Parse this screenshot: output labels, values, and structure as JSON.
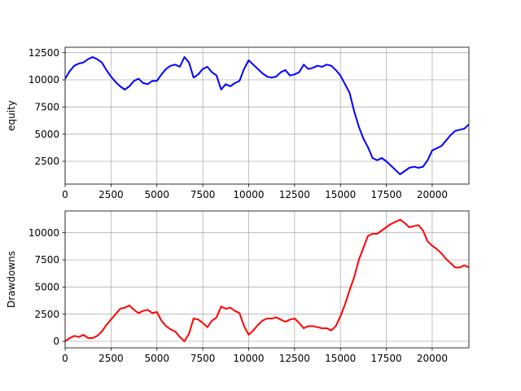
{
  "chart_data": [
    {
      "type": "line",
      "title": "",
      "xlabel": "",
      "ylabel": "equity",
      "xlim": [
        0,
        22000
      ],
      "ylim": [
        400,
        13000
      ],
      "xticks": [
        0,
        2500,
        5000,
        7500,
        10000,
        12500,
        15000,
        17500,
        20000
      ],
      "yticks": [
        2500,
        5000,
        7500,
        10000,
        12500
      ],
      "grid": true,
      "series": [
        {
          "name": "",
          "color": "#0000ff",
          "x": [
            0,
            250,
            500,
            750,
            1000,
            1250,
            1500,
            1750,
            2000,
            2250,
            2500,
            2750,
            3000,
            3250,
            3500,
            3750,
            4000,
            4250,
            4500,
            4750,
            5000,
            5250,
            5500,
            5750,
            6000,
            6250,
            6500,
            6750,
            7000,
            7250,
            7500,
            7750,
            8000,
            8250,
            8500,
            8750,
            9000,
            9250,
            9500,
            9750,
            10000,
            10250,
            10500,
            10750,
            11000,
            11250,
            11500,
            11750,
            12000,
            12250,
            12500,
            12750,
            13000,
            13250,
            13500,
            13750,
            14000,
            14250,
            14500,
            14750,
            15000,
            15250,
            15500,
            15750,
            16000,
            16250,
            16500,
            16750,
            17000,
            17250,
            17500,
            17750,
            18000,
            18250,
            18500,
            18750,
            19000,
            19250,
            19500,
            19750,
            20000,
            20250,
            20500,
            20750,
            21000,
            21250,
            21500,
            21750,
            22000
          ],
          "values": [
            10100,
            10800,
            11300,
            11500,
            11600,
            11900,
            12100,
            11900,
            11600,
            10900,
            10300,
            9800,
            9400,
            9100,
            9400,
            9900,
            10100,
            9700,
            9600,
            9900,
            9900,
            10500,
            11000,
            11300,
            11400,
            11200,
            12100,
            11600,
            10200,
            10500,
            11000,
            11200,
            10700,
            10400,
            9100,
            9600,
            9400,
            9700,
            9900,
            11000,
            11800,
            11400,
            11000,
            10600,
            10300,
            10200,
            10300,
            10700,
            10900,
            10400,
            10500,
            10700,
            11400,
            11000,
            11100,
            11300,
            11200,
            11400,
            11300,
            10900,
            10400,
            9600,
            8800,
            7100,
            5700,
            4600,
            3800,
            2800,
            2600,
            2800,
            2500,
            2100,
            1700,
            1300,
            1600,
            1900,
            2000,
            1900,
            2000,
            2600,
            3500,
            3700,
            3900,
            4400,
            4900,
            5300,
            5400,
            5500,
            5900
          ]
        }
      ]
    },
    {
      "type": "line",
      "title": "",
      "xlabel": "",
      "ylabel": "Drawdowns",
      "xlim": [
        0,
        22000
      ],
      "ylim": [
        -600,
        12000
      ],
      "xticks": [
        0,
        2500,
        5000,
        7500,
        10000,
        12500,
        15000,
        17500,
        20000
      ],
      "yticks": [
        0,
        2500,
        5000,
        7500,
        10000
      ],
      "grid": true,
      "series": [
        {
          "name": "",
          "color": "#ff0000",
          "x": [
            0,
            250,
            500,
            750,
            1000,
            1250,
            1500,
            1750,
            2000,
            2250,
            2500,
            2750,
            3000,
            3250,
            3500,
            3750,
            4000,
            4250,
            4500,
            4750,
            5000,
            5250,
            5500,
            5750,
            6000,
            6250,
            6500,
            6750,
            7000,
            7250,
            7500,
            7750,
            8000,
            8250,
            8500,
            8750,
            9000,
            9250,
            9500,
            9750,
            10000,
            10250,
            10500,
            10750,
            11000,
            11250,
            11500,
            11750,
            12000,
            12250,
            12500,
            12750,
            13000,
            13250,
            13500,
            13750,
            14000,
            14250,
            14500,
            14750,
            15000,
            15250,
            15500,
            15750,
            16000,
            16250,
            16500,
            16750,
            17000,
            17250,
            17500,
            17750,
            18000,
            18250,
            18500,
            18750,
            19000,
            19250,
            19500,
            19750,
            20000,
            20250,
            20500,
            20750,
            21000,
            21250,
            21500,
            21750,
            22000
          ],
          "values": [
            0,
            300,
            500,
            400,
            600,
            300,
            300,
            500,
            900,
            1500,
            2000,
            2500,
            3000,
            3100,
            3300,
            2900,
            2600,
            2800,
            2900,
            2600,
            2700,
            1900,
            1400,
            1100,
            900,
            400,
            0,
            700,
            2100,
            2000,
            1700,
            1300,
            1900,
            2200,
            3200,
            3000,
            3100,
            2800,
            2600,
            1400,
            600,
            1000,
            1500,
            1900,
            2100,
            2100,
            2200,
            2000,
            1800,
            2000,
            2100,
            1700,
            1200,
            1400,
            1400,
            1300,
            1200,
            1200,
            1000,
            1400,
            2300,
            3400,
            4700,
            5900,
            7500,
            8600,
            9700,
            9900,
            9900,
            10200,
            10500,
            10800,
            11000,
            11200,
            10900,
            10500,
            10600,
            10700,
            10200,
            9200,
            8800,
            8500,
            8100,
            7600,
            7200,
            6800,
            6800,
            7000,
            6800
          ]
        }
      ]
    }
  ]
}
